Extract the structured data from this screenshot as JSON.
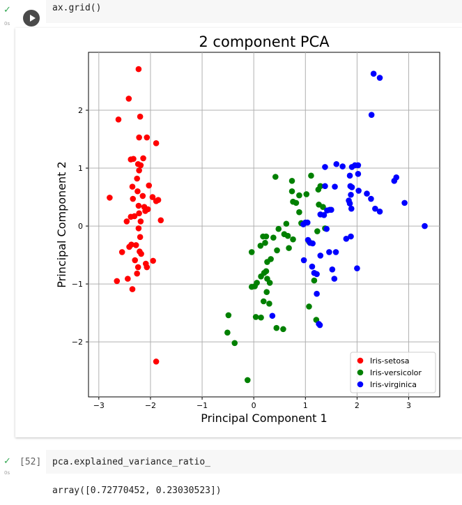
{
  "cell1": {
    "code": "ax.grid()",
    "exec_time": "0s",
    "status_icon": "check-icon",
    "output_icon": "output-redirect-icon"
  },
  "cell2": {
    "exec_count": "[52]",
    "code": "pca.explained_variance_ratio_",
    "exec_time": "0s",
    "output": "array([0.72770452, 0.23030523])"
  },
  "chart_data": {
    "type": "scatter",
    "title": "2 component PCA",
    "xlabel": "Principal Component 1",
    "ylabel": "Principal Component 2",
    "xlim": [
      -3.2,
      3.6
    ],
    "ylim": [
      -2.95,
      3.0
    ],
    "xticks": [
      -3,
      -2,
      -1,
      0,
      1,
      2,
      3
    ],
    "yticks": [
      -2,
      -1,
      0,
      1,
      2
    ],
    "grid": true,
    "legend_position": "bottom-right",
    "series": [
      {
        "name": "Iris-setosa",
        "color": "#ff0000",
        "points": [
          [
            -2.23,
            2.71
          ],
          [
            -2.42,
            2.2
          ],
          [
            -2.62,
            1.84
          ],
          [
            -2.2,
            1.89
          ],
          [
            -2.22,
            1.53
          ],
          [
            -2.07,
            1.53
          ],
          [
            -1.89,
            1.43
          ],
          [
            -2.38,
            1.15
          ],
          [
            -2.33,
            1.16
          ],
          [
            -2.14,
            1.17
          ],
          [
            -2.24,
            1.07
          ],
          [
            -2.19,
            1.05
          ],
          [
            -2.22,
            0.96
          ],
          [
            -2.26,
            0.82
          ],
          [
            -2.35,
            0.68
          ],
          [
            -2.03,
            0.7
          ],
          [
            -2.25,
            0.6
          ],
          [
            -2.15,
            0.52
          ],
          [
            -2.79,
            0.49
          ],
          [
            -2.34,
            0.47
          ],
          [
            -1.96,
            0.5
          ],
          [
            -1.85,
            0.45
          ],
          [
            -1.89,
            0.43
          ],
          [
            -2.05,
            0.29
          ],
          [
            -2.12,
            0.33
          ],
          [
            -2.23,
            0.35
          ],
          [
            -2.1,
            0.26
          ],
          [
            -2.22,
            0.22
          ],
          [
            -2.31,
            0.17
          ],
          [
            -2.38,
            0.16
          ],
          [
            -2.19,
            0.08
          ],
          [
            -2.46,
            0.08
          ],
          [
            -1.8,
            0.1
          ],
          [
            -2.23,
            -0.04
          ],
          [
            -2.2,
            -0.19
          ],
          [
            -2.37,
            -0.32
          ],
          [
            -2.28,
            -0.33
          ],
          [
            -2.41,
            -0.36
          ],
          [
            -2.21,
            -0.44
          ],
          [
            -2.55,
            -0.45
          ],
          [
            -2.18,
            -0.48
          ],
          [
            -1.95,
            -0.6
          ],
          [
            -2.3,
            -0.59
          ],
          [
            -2.09,
            -0.65
          ],
          [
            -2.07,
            -0.71
          ],
          [
            -2.24,
            -0.71
          ],
          [
            -2.26,
            -0.82
          ],
          [
            -2.44,
            -0.91
          ],
          [
            -2.65,
            -0.95
          ],
          [
            -2.35,
            -1.09
          ],
          [
            -1.89,
            -2.34
          ]
        ]
      },
      {
        "name": "Iris-versicolor",
        "color": "#008000",
        "points": [
          [
            0.42,
            0.85
          ],
          [
            1.11,
            0.87
          ],
          [
            0.74,
            0.78
          ],
          [
            1.29,
            0.69
          ],
          [
            0.74,
            0.6
          ],
          [
            1.02,
            0.55
          ],
          [
            0.88,
            0.53
          ],
          [
            1.25,
            0.63
          ],
          [
            0.82,
            0.4
          ],
          [
            0.76,
            0.42
          ],
          [
            1.26,
            0.37
          ],
          [
            1.34,
            0.33
          ],
          [
            0.88,
            0.24
          ],
          [
            0.92,
            0.05
          ],
          [
            0.63,
            0.04
          ],
          [
            0.48,
            -0.05
          ],
          [
            1.38,
            -0.04
          ],
          [
            0.24,
            -0.18
          ],
          [
            0.18,
            -0.18
          ],
          [
            0.38,
            -0.2
          ],
          [
            0.59,
            -0.14
          ],
          [
            0.66,
            -0.17
          ],
          [
            0.76,
            -0.23
          ],
          [
            1.23,
            -0.09
          ],
          [
            1.07,
            -0.27
          ],
          [
            0.13,
            -0.34
          ],
          [
            0.22,
            -0.29
          ],
          [
            0.68,
            -0.38
          ],
          [
            0.45,
            -0.42
          ],
          [
            -0.04,
            -0.45
          ],
          [
            0.33,
            -0.57
          ],
          [
            0.26,
            -0.62
          ],
          [
            0.24,
            -0.78
          ],
          [
            0.2,
            -0.81
          ],
          [
            0.14,
            -0.87
          ],
          [
            0.26,
            -0.91
          ],
          [
            0.31,
            -0.98
          ],
          [
            0.06,
            -0.98
          ],
          [
            -0.04,
            -1.05
          ],
          [
            0.02,
            -1.04
          ],
          [
            0.25,
            -1.14
          ],
          [
            0.19,
            -1.3
          ],
          [
            0.3,
            -1.34
          ],
          [
            1.07,
            -1.39
          ],
          [
            1.17,
            -0.94
          ],
          [
            -0.49,
            -1.54
          ],
          [
            0.04,
            -1.57
          ],
          [
            0.14,
            -1.58
          ],
          [
            0.44,
            -1.76
          ],
          [
            0.57,
            -1.78
          ],
          [
            1.21,
            -1.62
          ],
          [
            -0.51,
            -1.84
          ],
          [
            -0.37,
            -2.02
          ],
          [
            -0.12,
            -2.66
          ]
        ]
      },
      {
        "name": "Iris-virginica",
        "color": "#0000ff",
        "points": [
          [
            2.32,
            2.63
          ],
          [
            2.44,
            2.56
          ],
          [
            2.28,
            1.92
          ],
          [
            1.38,
            1.02
          ],
          [
            1.6,
            1.07
          ],
          [
            1.72,
            1.03
          ],
          [
            1.96,
            1.05
          ],
          [
            2.02,
            1.05
          ],
          [
            1.9,
            1.02
          ],
          [
            1.86,
            0.87
          ],
          [
            2.02,
            0.9
          ],
          [
            2.76,
            0.84
          ],
          [
            2.72,
            0.78
          ],
          [
            1.38,
            0.69
          ],
          [
            1.57,
            0.68
          ],
          [
            1.87,
            0.69
          ],
          [
            1.9,
            0.67
          ],
          [
            2.03,
            0.61
          ],
          [
            2.19,
            0.56
          ],
          [
            1.88,
            0.54
          ],
          [
            2.27,
            0.47
          ],
          [
            1.84,
            0.44
          ],
          [
            1.86,
            0.39
          ],
          [
            2.92,
            0.4
          ],
          [
            1.89,
            0.3
          ],
          [
            2.35,
            0.3
          ],
          [
            2.44,
            0.25
          ],
          [
            1.42,
            0.27
          ],
          [
            1.5,
            0.28
          ],
          [
            1.47,
            0.28
          ],
          [
            1.36,
            0.19
          ],
          [
            1.29,
            0.2
          ],
          [
            0.96,
            0.03
          ],
          [
            1.0,
            0.06
          ],
          [
            1.04,
            0.06
          ],
          [
            3.31,
            0.0
          ],
          [
            1.41,
            -0.05
          ],
          [
            1.05,
            -0.24
          ],
          [
            1.09,
            -0.29
          ],
          [
            1.14,
            -0.3
          ],
          [
            1.46,
            -0.45
          ],
          [
            1.29,
            -0.51
          ],
          [
            1.88,
            -0.18
          ],
          [
            1.79,
            -0.22
          ],
          [
            1.59,
            -0.45
          ],
          [
            0.97,
            -0.59
          ],
          [
            1.13,
            -0.7
          ],
          [
            1.52,
            -0.75
          ],
          [
            2.0,
            -0.73
          ],
          [
            1.17,
            -0.81
          ],
          [
            1.22,
            -0.83
          ],
          [
            1.56,
            -0.91
          ],
          [
            1.22,
            -1.17
          ],
          [
            0.36,
            -1.55
          ],
          [
            1.26,
            -1.69
          ],
          [
            1.28,
            -1.71
          ]
        ]
      }
    ]
  }
}
